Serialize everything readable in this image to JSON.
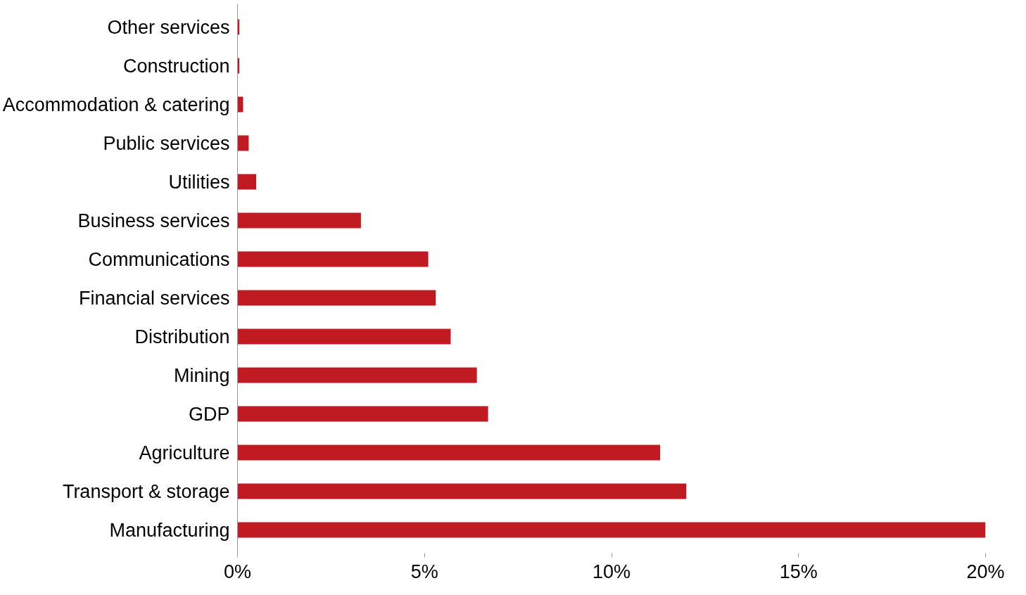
{
  "chart_data": {
    "type": "bar",
    "orientation": "horizontal",
    "categories": [
      "Other services",
      "Construction",
      "Accommodation & catering",
      "Public services",
      "Utilities",
      "Business services",
      "Communications",
      "Financial services",
      "Distribution",
      "Mining",
      "GDP",
      "Agriculture",
      "Transport & storage",
      "Manufacturing"
    ],
    "values": [
      0.05,
      0.05,
      0.15,
      0.3,
      0.5,
      3.3,
      5.1,
      5.3,
      5.7,
      6.4,
      6.7,
      11.3,
      12.0,
      20.0
    ],
    "color": "#c01b23",
    "xlim": [
      0,
      20
    ],
    "xticks": [
      {
        "value": 0,
        "label": "0%"
      },
      {
        "value": 5,
        "label": "5%"
      },
      {
        "value": 10,
        "label": "10%"
      },
      {
        "value": 15,
        "label": "15%"
      },
      {
        "value": 20,
        "label": "20%"
      }
    ],
    "grid": false
  }
}
